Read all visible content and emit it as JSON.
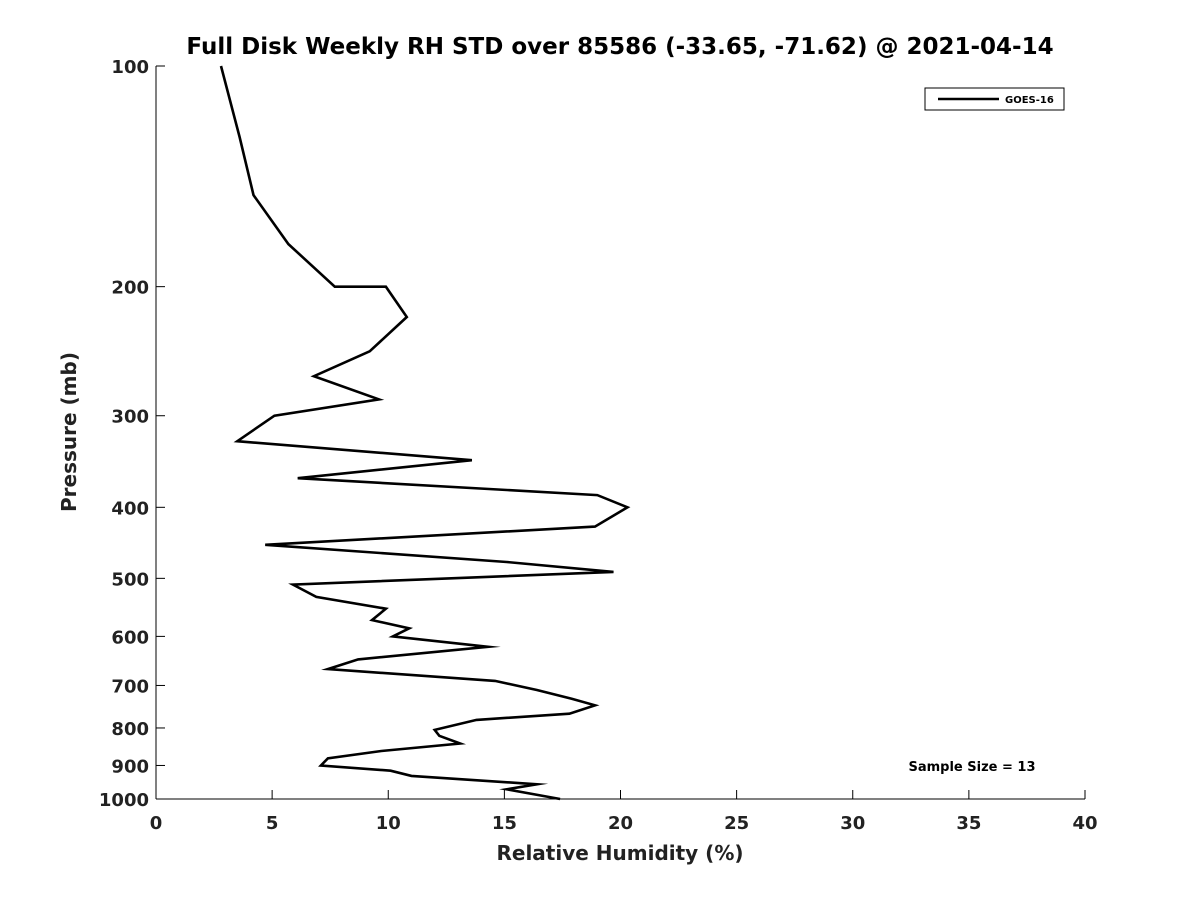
{
  "chart_data": {
    "type": "line",
    "title": "Full Disk Weekly RH STD over 85586 (-33.65, -71.62) @ 2021-04-14",
    "xlabel": "Relative Humidity (%)",
    "ylabel": "Pressure (mb)",
    "xlim": [
      0,
      40
    ],
    "ylim": [
      100,
      1000
    ],
    "y_scale": "log",
    "y_reversed": true,
    "x_ticks": [
      "0",
      "5",
      "10",
      "15",
      "20",
      "25",
      "30",
      "35",
      "40"
    ],
    "y_ticks": [
      "100",
      "200",
      "300",
      "400",
      "500",
      "600",
      "700",
      "800",
      "900",
      "1000"
    ],
    "grid": false,
    "legend": {
      "placement": "top-right",
      "entries": [
        "GOES-16"
      ]
    },
    "annotation": "Sample Size = 13",
    "series": [
      {
        "name": "GOES-16",
        "color": "#000000",
        "points": [
          [
            2.8,
            100
          ],
          [
            3.6,
            125
          ],
          [
            4.2,
            150
          ],
          [
            5.7,
            175
          ],
          [
            7.7,
            200
          ],
          [
            9.9,
            200
          ],
          [
            10.8,
            220
          ],
          [
            9.2,
            245
          ],
          [
            6.8,
            265
          ],
          [
            9.6,
            285
          ],
          [
            5.1,
            300
          ],
          [
            3.5,
            325
          ],
          [
            13.6,
            345
          ],
          [
            6.1,
            365
          ],
          [
            19.0,
            385
          ],
          [
            20.3,
            400
          ],
          [
            18.9,
            425
          ],
          [
            4.7,
            450
          ],
          [
            15.1,
            475
          ],
          [
            19.7,
            490
          ],
          [
            5.9,
            510
          ],
          [
            6.9,
            530
          ],
          [
            9.9,
            550
          ],
          [
            9.3,
            570
          ],
          [
            10.9,
            585
          ],
          [
            10.2,
            600
          ],
          [
            14.3,
            620
          ],
          [
            8.7,
            645
          ],
          [
            7.4,
            665
          ],
          [
            14.6,
            690
          ],
          [
            16.4,
            710
          ],
          [
            17.9,
            730
          ],
          [
            18.9,
            745
          ],
          [
            17.8,
            765
          ],
          [
            13.8,
            780
          ],
          [
            12.0,
            805
          ],
          [
            12.2,
            820
          ],
          [
            13.1,
            840
          ],
          [
            9.7,
            860
          ],
          [
            7.4,
            880
          ],
          [
            7.1,
            900
          ],
          [
            10.1,
            915
          ],
          [
            11.0,
            930
          ],
          [
            16.4,
            955
          ],
          [
            15.1,
            970
          ],
          [
            17.4,
            1000
          ]
        ]
      }
    ]
  }
}
